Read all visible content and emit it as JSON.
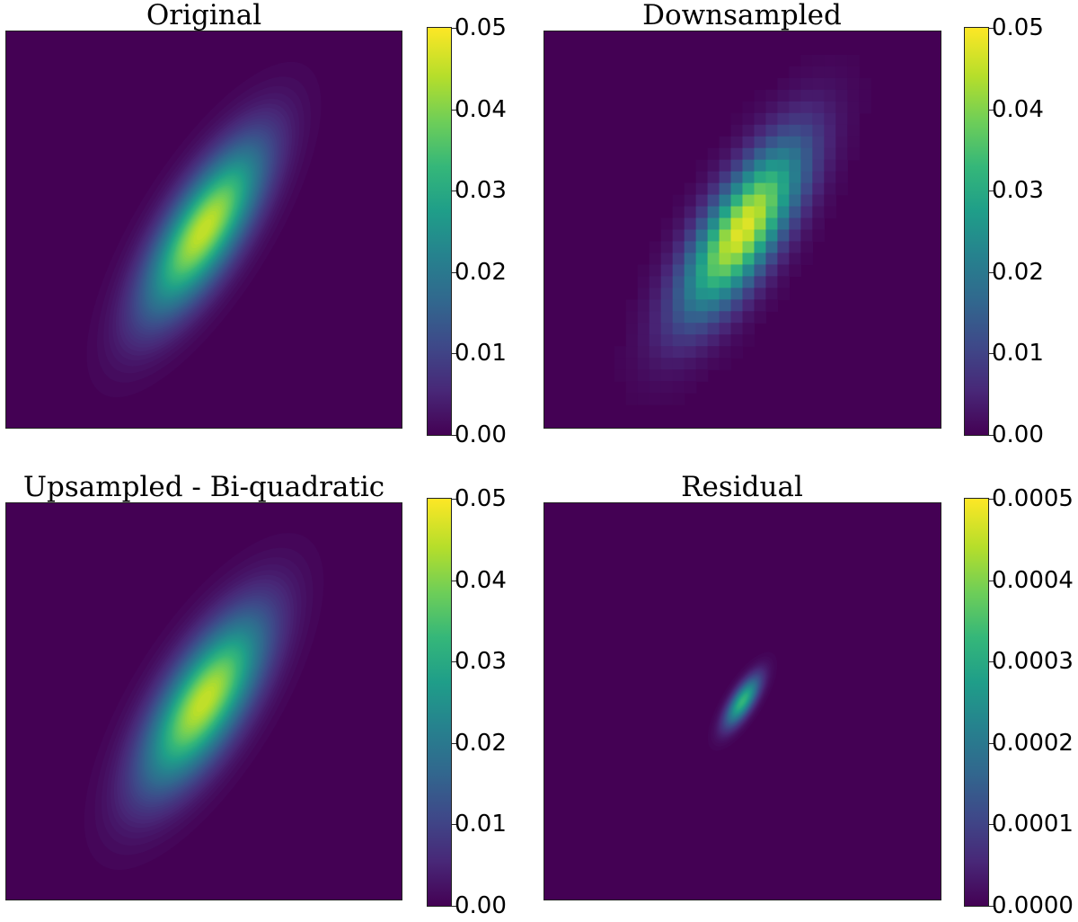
{
  "colormap": [
    "#440154",
    "#482878",
    "#3e4989",
    "#31688e",
    "#26828e",
    "#1f9e89",
    "#35b779",
    "#6ece58",
    "#b5de2b",
    "#fde725"
  ],
  "chart_data": [
    {
      "type": "heatmap",
      "title": "Original",
      "colorbar": {
        "min": 0.0,
        "max": 0.05,
        "ticks": [
          "0.00",
          "0.01",
          "0.02",
          "0.03",
          "0.04",
          "0.05"
        ]
      },
      "blob": {
        "center": [
          0.5,
          0.5
        ],
        "peak": 0.046,
        "angle_deg": 58,
        "sigma_major": 0.17,
        "sigma_minor": 0.06
      },
      "pixelated": false,
      "xlabel": "",
      "ylabel": ""
    },
    {
      "type": "heatmap",
      "title": "Downsampled",
      "colorbar": {
        "min": 0.0,
        "max": 0.05,
        "ticks": [
          "0.00",
          "0.01",
          "0.02",
          "0.03",
          "0.04",
          "0.05"
        ]
      },
      "blob": {
        "center": [
          0.5,
          0.5
        ],
        "peak": 0.048,
        "angle_deg": 58,
        "sigma_major": 0.17,
        "sigma_minor": 0.06
      },
      "pixelated": true,
      "grid_cells": 34,
      "xlabel": "",
      "ylabel": ""
    },
    {
      "type": "heatmap",
      "title": "Upsampled - Bi-quadratic",
      "colorbar": {
        "min": 0.0,
        "max": 0.05,
        "ticks": [
          "0.00",
          "0.01",
          "0.02",
          "0.03",
          "0.04",
          "0.05"
        ]
      },
      "blob": {
        "center": [
          0.5,
          0.5
        ],
        "peak": 0.046,
        "angle_deg": 58,
        "sigma_major": 0.17,
        "sigma_minor": 0.065
      },
      "pixelated": false,
      "xlabel": "",
      "ylabel": ""
    },
    {
      "type": "heatmap",
      "title": "Residual",
      "colorbar": {
        "min": 0.0,
        "max": 0.0005,
        "ticks": [
          "0.0000",
          "0.0001",
          "0.0002",
          "0.0003",
          "0.0004",
          "0.0005"
        ]
      },
      "blob": {
        "center": [
          0.5,
          0.5
        ],
        "peak": 0.00033,
        "angle_deg": 58,
        "sigma_major": 0.05,
        "sigma_minor": 0.018
      },
      "pixelated": false,
      "xlabel": "",
      "ylabel": ""
    }
  ]
}
